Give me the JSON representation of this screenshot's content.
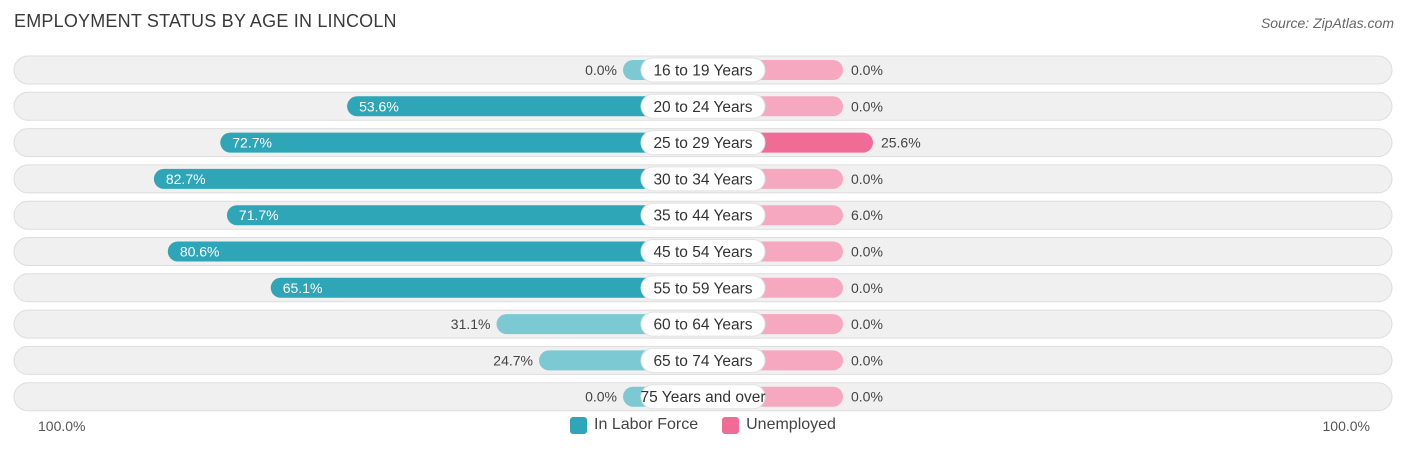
{
  "title": "EMPLOYMENT STATUS BY AGE IN LINCOLN",
  "source": "Source: ZipAtlas.com",
  "axis": {
    "left_label": "100.0%",
    "right_label": "100.0%"
  },
  "colors": {
    "labor_dark": "#2ea6b8",
    "labor_light": "#7cc9d4",
    "unemployed_dark": "#f06c96",
    "unemployed_light": "#f6a8c1",
    "row_bg": "#f0f0f0",
    "row_border": "#dddddd"
  },
  "legend": [
    {
      "name": "In Labor Force",
      "color": "#2ea6b8"
    },
    {
      "name": "Unemployed",
      "color": "#f06c96"
    }
  ],
  "chart_data": {
    "type": "bar",
    "title": "EMPLOYMENT STATUS BY AGE IN LINCOLN",
    "categories": [
      "16 to 19 Years",
      "20 to 24 Years",
      "25 to 29 Years",
      "30 to 34 Years",
      "35 to 44 Years",
      "45 to 54 Years",
      "55 to 59 Years",
      "60 to 64 Years",
      "65 to 74 Years",
      "75 Years and over"
    ],
    "series": [
      {
        "name": "In Labor Force",
        "values": [
          0.0,
          53.6,
          72.7,
          82.7,
          71.7,
          80.6,
          65.1,
          31.1,
          24.7,
          0.0
        ],
        "labels": [
          "0.0%",
          "53.6%",
          "72.7%",
          "82.7%",
          "71.7%",
          "80.6%",
          "65.1%",
          "31.1%",
          "24.7%",
          "0.0%"
        ]
      },
      {
        "name": "Unemployed",
        "values": [
          0.0,
          0.0,
          25.6,
          0.0,
          6.0,
          0.0,
          0.0,
          0.0,
          0.0,
          0.0
        ],
        "labels": [
          "0.0%",
          "0.0%",
          "25.6%",
          "0.0%",
          "6.0%",
          "0.0%",
          "0.0%",
          "0.0%",
          "0.0%",
          "0.0%"
        ]
      }
    ],
    "xlim": [
      -100,
      100
    ],
    "legend_position": "bottom-center"
  }
}
